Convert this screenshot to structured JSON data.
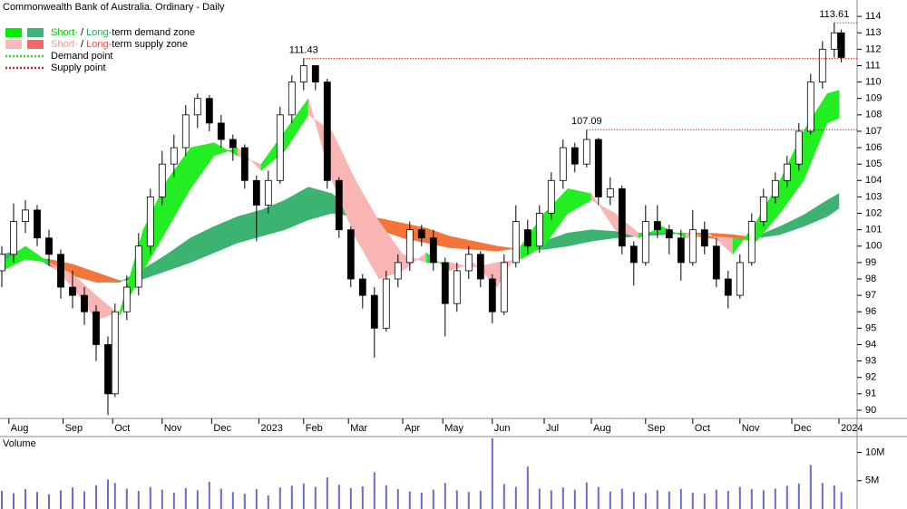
{
  "chart_data": {
    "type": "candlestick",
    "title": "Commonwealth Bank of Australia. Ordinary - Daily",
    "xlim": [
      0,
      360
    ],
    "xticks": [
      {
        "value": 3,
        "label": "Aug"
      },
      {
        "value": 26,
        "label": "Sep"
      },
      {
        "value": 47,
        "label": "Oct"
      },
      {
        "value": 68,
        "label": "Nov"
      },
      {
        "value": 89,
        "label": "Dec"
      },
      {
        "value": 109,
        "label": "2023"
      },
      {
        "value": 128,
        "label": "Feb"
      },
      {
        "value": 147,
        "label": "Mar"
      },
      {
        "value": 170,
        "label": "Apr"
      },
      {
        "value": 187,
        "label": "May"
      },
      {
        "value": 208,
        "label": "Jun"
      },
      {
        "value": 230,
        "label": "Jul"
      },
      {
        "value": 250,
        "label": "Aug"
      },
      {
        "value": 273,
        "label": "Sep"
      },
      {
        "value": 293,
        "label": "Oct"
      },
      {
        "value": 313,
        "label": "Nov"
      },
      {
        "value": 335,
        "label": "Dec"
      },
      {
        "value": 355,
        "label": "2024"
      }
    ],
    "ylim": [
      89.5,
      115
    ],
    "yticks": [
      90,
      91,
      92,
      93,
      94,
      95,
      96,
      97,
      98,
      99,
      100,
      101,
      102,
      103,
      104,
      105,
      106,
      107,
      108,
      109,
      110,
      111,
      112,
      113,
      114
    ],
    "candles": {
      "x": [
        0,
        5,
        10,
        15,
        20,
        25,
        30,
        35,
        40,
        45,
        48,
        53,
        58,
        63,
        68,
        73,
        78,
        83,
        88,
        93,
        98,
        103,
        108,
        113,
        118,
        123,
        128,
        133,
        138,
        143,
        148,
        153,
        158,
        163,
        168,
        173,
        178,
        183,
        188,
        193,
        198,
        203,
        208,
        213,
        218,
        223,
        228,
        233,
        238,
        243,
        248,
        253,
        258,
        263,
        268,
        273,
        278,
        283,
        288,
        293,
        298,
        303,
        308,
        313,
        318,
        323,
        328,
        333,
        338,
        343,
        348,
        353,
        356
      ],
      "open": [
        98.5,
        99.5,
        101.5,
        102.2,
        100.5,
        99.5,
        97.5,
        97,
        96,
        94,
        91,
        96,
        97.5,
        100,
        103,
        105,
        106,
        108,
        109,
        107.5,
        106.5,
        106,
        104,
        102.5,
        104,
        108,
        110,
        111,
        110,
        104,
        101,
        98,
        97,
        95,
        98,
        99,
        101,
        100.5,
        99,
        96.5,
        98.5,
        99.5,
        98,
        96,
        99,
        101,
        100,
        102,
        104,
        106,
        105,
        106.5,
        103,
        103.5,
        100,
        99,
        101.5,
        101,
        100.5,
        99,
        101,
        100,
        98,
        97,
        99,
        101.5,
        103,
        104,
        105,
        107,
        110,
        112,
        113
      ],
      "high": [
        100,
        102.6,
        102.8,
        102.5,
        101,
        99.8,
        98.5,
        97.5,
        96.4,
        94.5,
        96.5,
        98.2,
        100.8,
        103.5,
        105.8,
        106.8,
        108.6,
        109.3,
        109.2,
        108,
        106.8,
        106.2,
        104.3,
        104.6,
        108.5,
        110.4,
        111.43,
        111,
        110.2,
        104.2,
        101.2,
        98.3,
        97.5,
        98.5,
        99.5,
        101.5,
        101.3,
        101,
        99.3,
        99,
        100,
        99.7,
        98.3,
        99.5,
        102.5,
        101.6,
        102.5,
        104.5,
        106.5,
        106.3,
        107.09,
        106.6,
        104.2,
        103.7,
        100.3,
        102.5,
        102.5,
        101.3,
        101,
        102.2,
        101.5,
        100.5,
        98.5,
        99.5,
        102,
        103.5,
        104.5,
        105.5,
        107.5,
        110.5,
        112.5,
        113.61,
        113.2
      ],
      "low": [
        97.5,
        99,
        100.8,
        100,
        98.8,
        96.8,
        96.2,
        95.2,
        93,
        89.7,
        90.8,
        95.5,
        97,
        99.5,
        102.5,
        104.2,
        105.5,
        107.2,
        107,
        106,
        105.2,
        103.5,
        100.3,
        102,
        103.8,
        107.5,
        109.5,
        109.5,
        103.5,
        100.5,
        97.5,
        96.2,
        93.2,
        94.8,
        97.5,
        98.5,
        100,
        98.5,
        94.5,
        96,
        98,
        97.5,
        95.3,
        95.8,
        98.7,
        99.5,
        99.6,
        101.6,
        103.5,
        104.5,
        104.8,
        102.5,
        102.5,
        99.5,
        97.6,
        98.8,
        100.5,
        99.5,
        97.9,
        98.8,
        99.5,
        97.5,
        96.2,
        96.8,
        98.8,
        101.2,
        102.6,
        103.6,
        104.6,
        106.8,
        109.6,
        111.5,
        111.2
      ],
      "close": [
        99.5,
        101.5,
        102.2,
        100.5,
        99.5,
        97.5,
        97,
        96,
        94,
        91,
        96,
        97.5,
        100,
        103,
        105,
        106,
        108,
        109,
        107.5,
        106.5,
        106,
        104,
        102.5,
        104,
        108,
        110,
        111,
        110,
        104,
        101,
        98,
        97,
        95,
        98,
        99,
        101,
        100.5,
        99,
        96.5,
        98.5,
        99.5,
        98,
        96,
        99,
        101.5,
        100,
        102,
        104,
        106,
        105,
        106.5,
        103,
        103.5,
        100,
        99,
        101.5,
        101,
        100.5,
        99,
        101,
        100,
        98,
        97,
        99,
        101.5,
        103,
        104,
        105,
        107,
        110,
        112,
        113,
        111.5
      ]
    },
    "zones": {
      "x": [
        0,
        10,
        20,
        30,
        40,
        50,
        60,
        70,
        80,
        90,
        100,
        110,
        120,
        130,
        140,
        150,
        160,
        170,
        180,
        190,
        200,
        210,
        220,
        230,
        240,
        250,
        260,
        270,
        280,
        290,
        300,
        310,
        320,
        330,
        340,
        350,
        355
      ],
      "long_term": {
        "fast": [
          99.5,
          99.8,
          98.8,
          98.2,
          97.8,
          97.8,
          98.6,
          99.5,
          100.5,
          101.2,
          101.8,
          102.2,
          102.8,
          103.6,
          103.2,
          102,
          101,
          100.5,
          100.2,
          99.9,
          99.8,
          99.7,
          99.9,
          100.3,
          100.8,
          101,
          100.9,
          100.8,
          100.9,
          100.7,
          100.5,
          100.3,
          100.6,
          101.2,
          101.9,
          102.8,
          103.2
        ],
        "slow": [
          99,
          99.3,
          99.2,
          98.9,
          98.4,
          97.9,
          98,
          98.5,
          99,
          99.6,
          100.2,
          100.6,
          101,
          101.6,
          102,
          101.8,
          101.7,
          101.4,
          101.1,
          100.6,
          100.3,
          100,
          99.8,
          99.8,
          100,
          100.3,
          100.5,
          100.6,
          100.7,
          100.8,
          100.8,
          100.7,
          100.5,
          100.7,
          101.2,
          101.8,
          102.3
        ],
        "demand_color": "#3cb371",
        "supply_color": "#f4743a"
      },
      "short_term": {
        "fast": [
          99,
          100,
          99,
          97.5,
          95.5,
          96,
          101,
          104,
          106,
          106.3,
          105.5,
          105,
          107,
          109,
          104,
          100.5,
          98,
          98.5,
          99.6,
          98.5,
          99,
          97.5,
          100,
          102,
          103.5,
          103.2,
          101,
          100.5,
          101.2,
          100.5,
          100.8,
          99.5,
          101.5,
          104,
          107,
          109.3,
          109.5
        ],
        "slow": [
          98.5,
          99.2,
          99,
          98.3,
          97,
          95.8,
          98.5,
          101,
          103.5,
          105.5,
          106,
          104.6,
          105.8,
          108,
          107,
          104,
          101.5,
          99.5,
          99,
          99,
          98.7,
          99,
          99.2,
          100,
          102,
          102.8,
          102,
          100.8,
          100.8,
          100.8,
          100.6,
          100.5,
          100.3,
          102,
          104,
          107.5,
          107.8
        ],
        "demand_color": "#22ee22",
        "supply_color": "#f9b4b4"
      }
    },
    "points": [
      {
        "value": 111.43,
        "x": 128,
        "color": "#e02020"
      },
      {
        "value": 107.09,
        "x": 248,
        "color": "#e02020"
      },
      {
        "value": 113.61,
        "x": 353,
        "color": "#e02020"
      }
    ],
    "legend": [
      {
        "swatches": [
          "#00ee00",
          "#3cb37a"
        ],
        "parts": [
          {
            "text": "Short-",
            "color": "#00cc00"
          },
          {
            "text": " / "
          },
          {
            "text": "Long-",
            "color": "#2e9e5e"
          },
          {
            "text": "term demand zone"
          }
        ]
      },
      {
        "swatches": [
          "#f9b9b9",
          "#f06a6a"
        ],
        "parts": [
          {
            "text": "Short-",
            "color": "#f0a0a0"
          },
          {
            "text": " / "
          },
          {
            "text": "Long-",
            "color": "#e05050"
          },
          {
            "text": "term supply zone"
          }
        ]
      },
      {
        "line_color": "#22dd22",
        "parts": [
          {
            "text": "Demand point"
          }
        ]
      },
      {
        "line_color": "#e02020",
        "parts": [
          {
            "text": "Supply point"
          }
        ]
      }
    ],
    "volume": {
      "label": "Volume",
      "color": "#6a6ad0",
      "ylim": [
        0,
        12800000
      ],
      "yticks": [
        {
          "value": 10000000,
          "label": "10M"
        },
        {
          "value": 5000000,
          "label": "5M"
        }
      ],
      "values": [
        3200000,
        2800000,
        3500000,
        3000000,
        2600000,
        3300000,
        3800000,
        3100000,
        4200000,
        5200000,
        4600000,
        3600000,
        3200000,
        3900000,
        3400000,
        2900000,
        3700000,
        3300000,
        4800000,
        3600000,
        3000000,
        2700000,
        3500000,
        2400000,
        3800000,
        4100000,
        4500000,
        3900000,
        5600000,
        4300000,
        3700000,
        4000000,
        6500000,
        4200000,
        3500000,
        3100000,
        2900000,
        3400000,
        4600000,
        3300000,
        3000000,
        3200000,
        12500000,
        4400000,
        3900000,
        7500000,
        3600000,
        3300000,
        3800000,
        3400000,
        4700000,
        3900000,
        3100000,
        3600000,
        3000000,
        2800000,
        3300000,
        3100000,
        3500000,
        2900000,
        2700000,
        3400000,
        3200000,
        3900000,
        3500000,
        3300000,
        3600000,
        4100000,
        4500000,
        7800000,
        4600000,
        4200000,
        3000000
      ]
    }
  }
}
